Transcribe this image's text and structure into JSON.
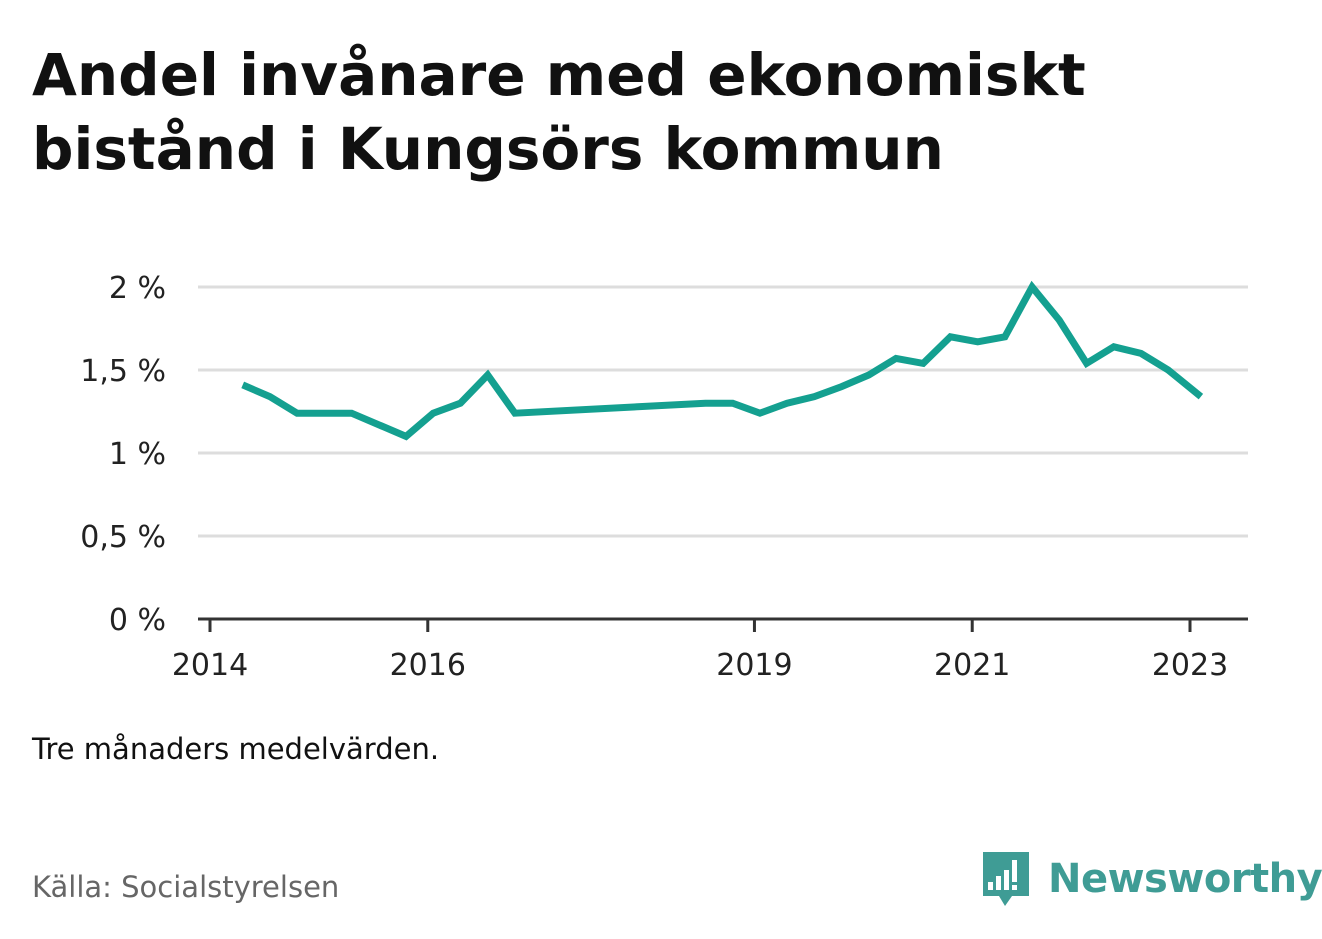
{
  "title": "Andel invånare med ekonomiskt bistånd i Kungsörs kommun",
  "note": "Tre månaders medelvärden.",
  "source": "Källa: Socialstyrelsen",
  "brand": {
    "name": "Newsworthy",
    "color": "#3f9c95"
  },
  "chart_data": {
    "type": "line",
    "ylim": [
      0,
      2
    ],
    "yticks": [
      0,
      0.5,
      1,
      1.5,
      2
    ],
    "ytick_labels": [
      "0 %",
      "0,5 %",
      "1 %",
      "1,5 %",
      "2 %"
    ],
    "xlim": [
      2014.0,
      2023.5
    ],
    "xticks": [
      2014,
      2016,
      2019,
      2021,
      2023
    ],
    "xtick_labels": [
      "2014",
      "2016",
      "2019",
      "2021",
      "2023"
    ],
    "grid": true,
    "series": [
      {
        "color": "#14a090",
        "x": [
          2014.3,
          2014.55,
          2014.8,
          2015.3,
          2015.8,
          2016.05,
          2016.3,
          2016.55,
          2016.8,
          2018.55,
          2018.8,
          2019.05,
          2019.3,
          2019.55,
          2019.8,
          2020.05,
          2020.3,
          2020.55,
          2020.8,
          2021.05,
          2021.3,
          2021.55,
          2021.8,
          2022.05,
          2022.3,
          2022.55,
          2022.8,
          2023.1
        ],
        "y": [
          1.41,
          1.34,
          1.24,
          1.24,
          1.1,
          1.24,
          1.3,
          1.47,
          1.24,
          1.3,
          1.3,
          1.24,
          1.3,
          1.34,
          1.4,
          1.47,
          1.57,
          1.54,
          1.7,
          1.67,
          1.7,
          2.0,
          1.8,
          1.54,
          1.64,
          1.6,
          1.5,
          1.34
        ]
      }
    ]
  }
}
